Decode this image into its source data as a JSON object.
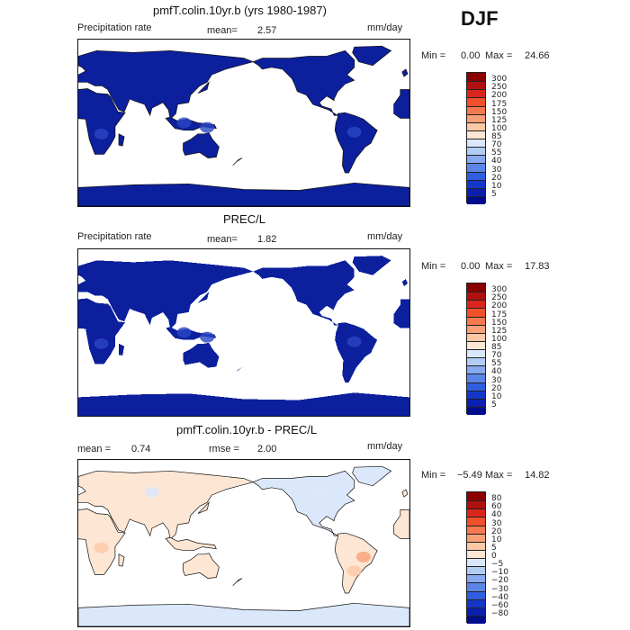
{
  "season": "DJF",
  "panels": [
    {
      "title": "pmfT.colin.10yr.b (yrs 1980-1987)",
      "left_label": "Precipitation rate",
      "stat_label": "mean=",
      "stat_value": "2.57",
      "stat2_label": "",
      "stat2_value": "",
      "units": "mm/day",
      "min_label": "Min =",
      "min_value": "0.00",
      "max_label": "Max =",
      "max_value": "24.66",
      "colorbar": {
        "labels": [
          "300",
          "250",
          "200",
          "175",
          "150",
          "125",
          "100",
          "85",
          "70",
          "55",
          "40",
          "30",
          "20",
          "10",
          "5"
        ],
        "colors": [
          "#8b0000",
          "#b01010",
          "#d9261c",
          "#f0502a",
          "#f77a4e",
          "#f9a079",
          "#fcc8a6",
          "#fde6d3",
          "#dbe8fb",
          "#b2cdf5",
          "#86a9ef",
          "#5b86e8",
          "#2f5fe0",
          "#1437c9",
          "#0a1fb0",
          "#000c8c"
        ]
      },
      "map_style": "full",
      "land_color": "#0c1f9c",
      "land_color_2": "#2a45c4"
    },
    {
      "title": "PREC/L",
      "left_label": "Precipitation rate",
      "stat_label": "mean=",
      "stat_value": "1.82",
      "stat2_label": "",
      "stat2_value": "",
      "units": "mm/day",
      "min_label": "Min =",
      "min_value": "0.00",
      "max_label": "Max =",
      "max_value": "17.83",
      "colorbar": {
        "labels": [
          "300",
          "250",
          "200",
          "175",
          "150",
          "125",
          "100",
          "85",
          "70",
          "55",
          "40",
          "30",
          "20",
          "10",
          "5"
        ],
        "colors": [
          "#8b0000",
          "#b01010",
          "#d9261c",
          "#f0502a",
          "#f77a4e",
          "#f9a079",
          "#fcc8a6",
          "#fde6d3",
          "#dbe8fb",
          "#b2cdf5",
          "#86a9ef",
          "#5b86e8",
          "#2f5fe0",
          "#1437c9",
          "#0a1fb0",
          "#000c8c"
        ]
      },
      "map_style": "pixel",
      "land_color": "#0c1f9c",
      "land_color_2": "#2a45c4"
    },
    {
      "title": "pmfT.colin.10yr.b - PREC/L",
      "left_label": "",
      "stat_label": "mean =",
      "stat_value": "0.74",
      "stat2_label": "rmse =",
      "stat2_value": "2.00",
      "units": "mm/day",
      "min_label": "Min =",
      "min_value": "−5.49",
      "max_label": "Max =",
      "max_value": "14.82",
      "colorbar": {
        "labels": [
          "80",
          "60",
          "40",
          "30",
          "20",
          "10",
          "5",
          "0",
          "−5",
          "−10",
          "−20",
          "−30",
          "−40",
          "−60",
          "−80"
        ],
        "colors": [
          "#8b0000",
          "#b01010",
          "#d9261c",
          "#f0502a",
          "#f77a4e",
          "#f9a079",
          "#fcc8a6",
          "#fde6d3",
          "#dbe8fb",
          "#b2cdf5",
          "#86a9ef",
          "#5b86e8",
          "#2f5fe0",
          "#1437c9",
          "#0a1fb0",
          "#000c8c"
        ]
      },
      "map_style": "diff",
      "land_color": "#fde6d3",
      "land_color_2": "#dbe8fb"
    }
  ]
}
